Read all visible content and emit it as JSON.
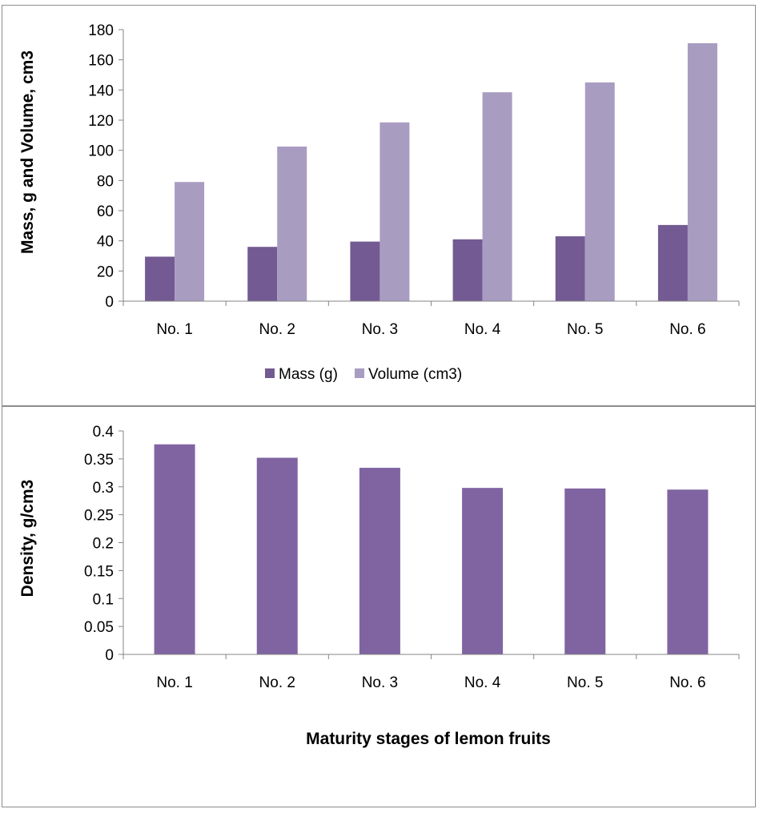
{
  "chart_data": [
    {
      "type": "bar",
      "title": "",
      "categories": [
        "No. 1",
        "No. 2",
        "No. 3",
        "No. 4",
        "No. 5",
        "No. 6"
      ],
      "series": [
        {
          "name": "Mass (g)",
          "color": "#735a92",
          "values": [
            29.5,
            36,
            39.5,
            41,
            43,
            50.5
          ]
        },
        {
          "name": "Volume (cm3)",
          "color": "#a99cc1",
          "values": [
            79,
            102.5,
            118.5,
            138.5,
            145,
            171
          ]
        }
      ],
      "ylabel": "Mass, g and Volume, cm3",
      "xlabel": "",
      "ylim": [
        0,
        180
      ],
      "yticks": [
        "0",
        "20",
        "40",
        "60",
        "80",
        "100",
        "120",
        "140",
        "160",
        "180"
      ],
      "grid": false,
      "legend": "bottom"
    },
    {
      "type": "bar",
      "title": "",
      "categories": [
        "No. 1",
        "No. 2",
        "No. 3",
        "No. 4",
        "No. 5",
        "No. 6"
      ],
      "series": [
        {
          "color": "#8064a2",
          "values": [
            0.376,
            0.352,
            0.334,
            0.298,
            0.297,
            0.295
          ]
        }
      ],
      "ylabel": "Density, g/cm3",
      "xlabel": "Maturity stages of lemon fruits",
      "ylim": [
        0,
        0.4
      ],
      "yticks": [
        "0",
        "0.05",
        "0.1",
        "0.15",
        "0.2",
        "0.25",
        "0.3",
        "0.35",
        "0.4"
      ],
      "grid": false,
      "legend": "none"
    }
  ]
}
